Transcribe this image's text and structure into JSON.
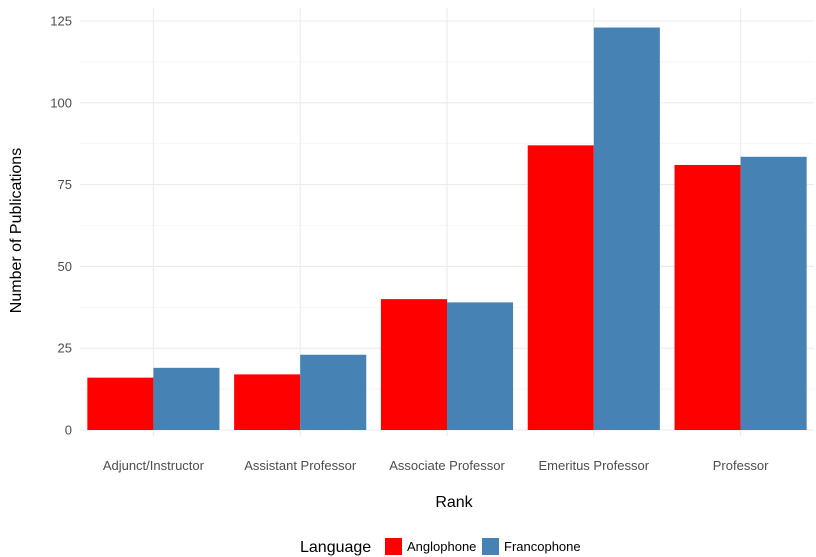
{
  "chart_data": {
    "type": "bar",
    "xlabel": "Rank",
    "ylabel": "Number of Publications",
    "categories": [
      "Adjunct/Instructor",
      "Assistant Professor",
      "Associate Professor",
      "Emeritus Professor",
      "Professor"
    ],
    "series": [
      {
        "name": "Anglophone",
        "color": "#ff0000",
        "values": [
          16,
          17,
          40,
          87,
          81
        ]
      },
      {
        "name": "Francophone",
        "color": "#4682b4",
        "values": [
          19,
          23,
          39,
          123,
          83.5
        ]
      }
    ],
    "ylim": [
      0,
      125
    ],
    "yticks": [
      "0",
      "25",
      "50",
      "75",
      "100",
      "125"
    ],
    "legend_title": "Language",
    "legend_position": "bottom",
    "grid": true
  }
}
